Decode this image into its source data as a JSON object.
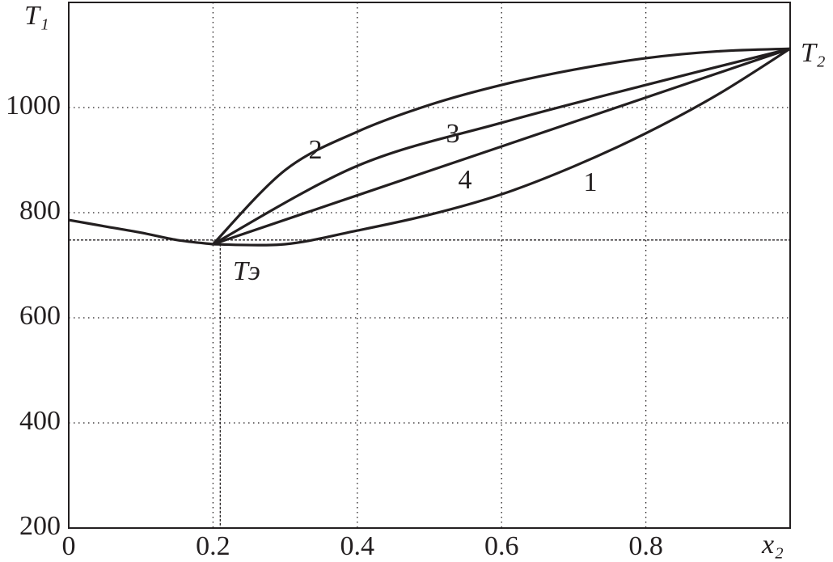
{
  "chart_data": {
    "type": "line",
    "ylabel": "T₁",
    "xlabel": "x₂",
    "annotations": [
      "T₂",
      "Tэ"
    ],
    "xlim": [
      0,
      1
    ],
    "ylim": [
      200,
      1200
    ],
    "xticks": [
      0,
      0.2,
      0.4,
      0.6,
      0.8
    ],
    "yticks": [
      200,
      400,
      600,
      800,
      1000
    ],
    "grid": true,
    "reference_lines": {
      "x": 0.21,
      "y": 748
    },
    "series": [
      {
        "color": "#231f20",
        "x": [
          0,
          0.05,
          0.1,
          0.15,
          0.2
        ],
        "values": [
          786,
          774,
          762,
          748,
          740
        ]
      },
      {
        "name": "1",
        "color": "#231f20",
        "x": [
          0.2,
          0.3,
          0.4,
          0.5,
          0.6,
          0.7,
          0.8,
          0.9,
          1.0
        ],
        "values": [
          740,
          740,
          766,
          796,
          835,
          888,
          951,
          1025,
          1112
        ]
      },
      {
        "name": "2",
        "color": "#231f20",
        "x": [
          0.2,
          0.3,
          0.4,
          0.5,
          0.6,
          0.7,
          0.8,
          0.9,
          1.0
        ],
        "values": [
          740,
          881,
          954,
          1005,
          1043,
          1072,
          1094,
          1107,
          1112
        ]
      },
      {
        "name": "3",
        "color": "#231f20",
        "x": [
          0.2,
          0.4,
          0.6,
          0.8,
          1.0
        ],
        "values": [
          740,
          889,
          971,
          1043,
          1112
        ]
      },
      {
        "name": "4",
        "color": "#231f20",
        "x": [
          0.2,
          0.4,
          0.6,
          0.8,
          1.0
        ],
        "values": [
          740,
          833,
          926,
          1019,
          1112
        ]
      }
    ]
  }
}
